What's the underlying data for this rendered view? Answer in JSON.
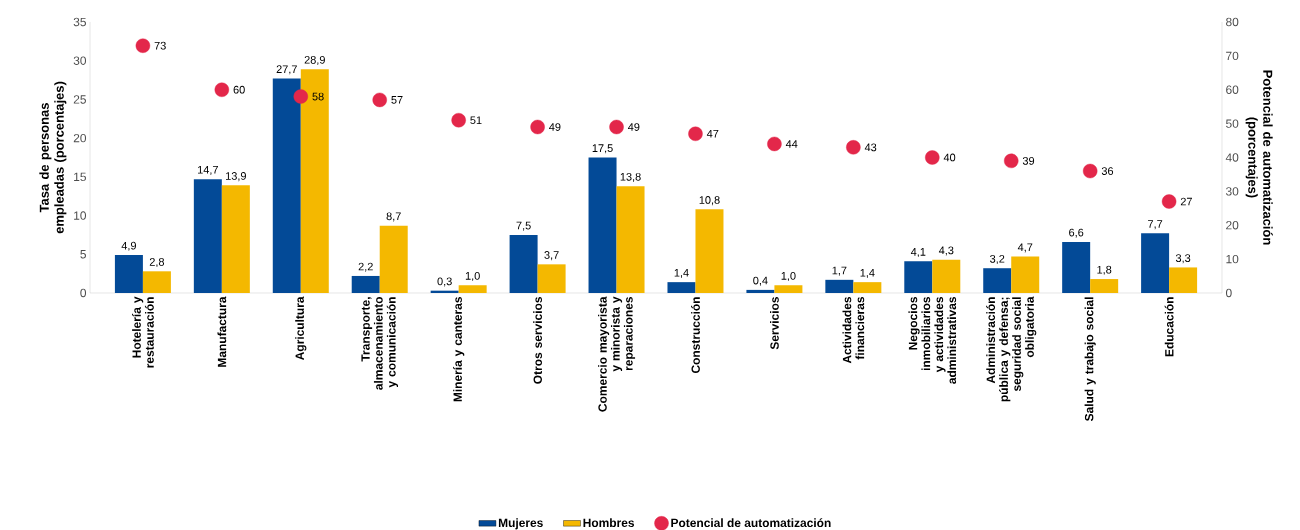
{
  "chart_data": {
    "type": "bar",
    "categories": [
      "Hotelería y restauración",
      "Manufactura",
      "Agricultura",
      "Transporte, almacenamiento y comunicación",
      "Minería y canteras",
      "Otros servicios",
      "Comercio mayorista y minorista y reparaciones",
      "Construcción",
      "Servicios",
      "Actividades financieras",
      "Negocios inmobiliarios y actividades administrativas",
      "Administración pública y defensa; seguridad social obligatoria",
      "Salud y trabajo social",
      "Educación"
    ],
    "ylabel": "Tasa de personas empleadas (porcentajes)",
    "y2label": "Potencial de automatización (porcentajes)",
    "ylim": [
      0,
      35
    ],
    "yticks": [
      0,
      5,
      10,
      15,
      20,
      25,
      30,
      35
    ],
    "y2lim": [
      0,
      80
    ],
    "y2ticks": [
      0,
      10,
      20,
      30,
      40,
      50,
      60,
      70,
      80
    ],
    "series": [
      {
        "name": "Mujeres",
        "color": "#034a97",
        "values": [
          4.9,
          14.7,
          27.7,
          2.2,
          0.3,
          7.5,
          17.5,
          1.4,
          0.4,
          1.7,
          4.1,
          3.2,
          6.6,
          7.7
        ],
        "value_labels": [
          "4,9",
          "14,7",
          "27,7",
          "2,2",
          "0,3",
          "7,5",
          "17,5",
          "1,4",
          "0,4",
          "1,7",
          "4,1",
          "3,2",
          "6,6",
          "7,7"
        ]
      },
      {
        "name": "Hombres",
        "color": "#f4b800",
        "values": [
          2.8,
          13.9,
          28.9,
          8.7,
          1.0,
          3.7,
          13.8,
          10.8,
          1.0,
          1.4,
          4.3,
          4.7,
          1.8,
          3.3
        ],
        "value_labels": [
          "2,8",
          "13,9",
          "28,9",
          "8,7",
          "1,0",
          "3,7",
          "13,8",
          "10,8",
          "1,0",
          "1,4",
          "4,3",
          "4,7",
          "1,8",
          "3,3"
        ]
      },
      {
        "name": "Potencial de automatización",
        "type": "scatter",
        "axis": "y2",
        "color": "#e3274a",
        "values": [
          73,
          60,
          58,
          57,
          51,
          49,
          49,
          47,
          44,
          43,
          40,
          39,
          36,
          27
        ],
        "value_labels": [
          "73",
          "60",
          "58",
          "57",
          "51",
          "49",
          "49",
          "47",
          "44",
          "43",
          "40",
          "39",
          "36",
          "27"
        ]
      }
    ],
    "legend": "bottom"
  }
}
